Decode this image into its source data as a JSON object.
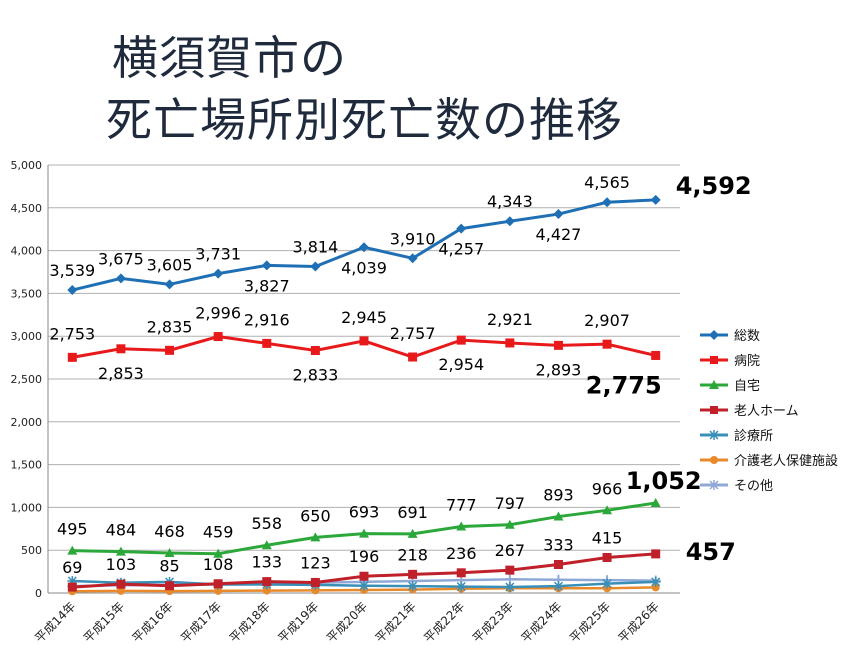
{
  "title_line1": "横須賀市の",
  "title_line2": "死亡場所別死亡数の推移",
  "chart_data": {
    "type": "line",
    "categories": [
      "平成14年",
      "平成15年",
      "平成16年",
      "平成17年",
      "平成18年",
      "平成19年",
      "平成20年",
      "平成21年",
      "平成22年",
      "平成23年",
      "平成24年",
      "平成25年",
      "平成26年"
    ],
    "ylim": [
      0,
      5000
    ],
    "yticks": [
      "0",
      "500",
      "1,000",
      "1,500",
      "2,000",
      "2,500",
      "3,000",
      "3,500",
      "4,000",
      "4,500",
      "5,000"
    ],
    "grid": true,
    "legend_position": "right",
    "series": [
      {
        "name": "総数",
        "color": "#1f6fb5",
        "marker": "diamond",
        "values": [
          3539,
          3675,
          3605,
          3731,
          3827,
          3814,
          4039,
          3910,
          4257,
          4343,
          4427,
          4565,
          4592
        ],
        "labels": [
          "3,539",
          "3,675",
          "3,605",
          "3,731",
          "3,827",
          "3,814",
          "4,039",
          "3,910",
          "4,257",
          "4,343",
          "4,427",
          "4,565",
          "4,592"
        ]
      },
      {
        "name": "病院",
        "color": "#e8191a",
        "marker": "square",
        "values": [
          2753,
          2853,
          2835,
          2996,
          2916,
          2833,
          2945,
          2757,
          2954,
          2921,
          2893,
          2907,
          2775
        ],
        "labels": [
          "2,753",
          "2,853",
          "2,835",
          "2,996",
          "2,916",
          "2,833",
          "2,945",
          "2,757",
          "2,954",
          "2,921",
          "2,893",
          "2,907",
          "2,775"
        ]
      },
      {
        "name": "自宅",
        "color": "#2ca83a",
        "marker": "triangle",
        "values": [
          495,
          484,
          468,
          459,
          558,
          650,
          693,
          691,
          777,
          797,
          893,
          966,
          1052
        ],
        "labels": [
          "495",
          "484",
          "468",
          "459",
          "558",
          "650",
          "693",
          "691",
          "777",
          "797",
          "893",
          "966",
          "1,052"
        ]
      },
      {
        "name": "老人ホーム",
        "color": "#c0202a",
        "marker": "square",
        "values": [
          69,
          103,
          85,
          108,
          133,
          123,
          196,
          218,
          236,
          267,
          333,
          415,
          457
        ],
        "labels": [
          "69",
          "103",
          "85",
          "108",
          "133",
          "123",
          "196",
          "218",
          "236",
          "267",
          "333",
          "415",
          "457"
        ]
      },
      {
        "name": "診療所",
        "color": "#3a8fb7",
        "marker": "star",
        "values": [
          140,
          120,
          130,
          100,
          100,
          95,
          85,
          80,
          75,
          70,
          80,
          110,
          130
        ],
        "labels": []
      },
      {
        "name": "介護老人保健施設",
        "color": "#e88a2c",
        "marker": "circle",
        "values": [
          20,
          25,
          22,
          25,
          28,
          30,
          35,
          40,
          50,
          55,
          55,
          55,
          65
        ],
        "labels": []
      },
      {
        "name": "その他",
        "color": "#8fa9d6",
        "marker": "plus",
        "values": [
          80,
          90,
          95,
          100,
          110,
          120,
          130,
          140,
          150,
          160,
          155,
          150,
          145
        ],
        "labels": []
      }
    ]
  }
}
